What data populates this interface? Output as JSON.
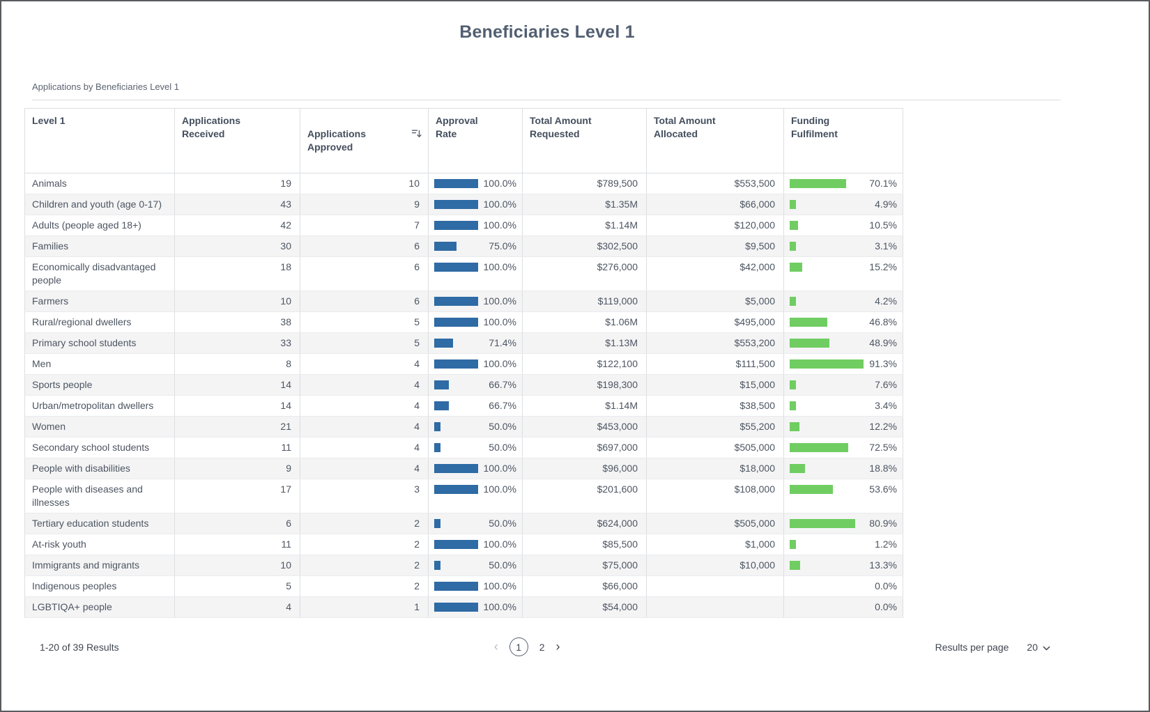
{
  "page": {
    "title": "Beneficiaries Level 1",
    "subtitle": "Applications by Beneficiaries Level 1"
  },
  "colors": {
    "approval_bar_blue": "#2f6ba4",
    "fulfilment_bar_green": "#70cd62"
  },
  "table": {
    "columns": [
      {
        "label": "Level 1"
      },
      {
        "label": "Applications\nReceived"
      },
      {
        "label": "Applications\nApproved",
        "sorted": true,
        "sort_icon": "sort-descending-icon"
      },
      {
        "label": "Approval\nRate"
      },
      {
        "label": "Total Amount\nRequested"
      },
      {
        "label": "Total Amount\nAllocated"
      },
      {
        "label": "Funding\nFulfilment"
      }
    ],
    "rows": [
      {
        "level1": "Animals",
        "received": "19",
        "approved": "10",
        "approval_rate": "100.0%",
        "approval_value": 100.0,
        "requested": "$789,500",
        "allocated": "$553,500",
        "fulfilment": "70.1%",
        "fulfilment_value": 70.1
      },
      {
        "level1": "Children and youth (age 0-17)",
        "received": "43",
        "approved": "9",
        "approval_rate": "100.0%",
        "approval_value": 100.0,
        "requested": "$1.35M",
        "allocated": "$66,000",
        "fulfilment": "4.9%",
        "fulfilment_value": 4.9
      },
      {
        "level1": "Adults (people aged 18+)",
        "received": "42",
        "approved": "7",
        "approval_rate": "100.0%",
        "approval_value": 100.0,
        "requested": "$1.14M",
        "allocated": "$120,000",
        "fulfilment": "10.5%",
        "fulfilment_value": 10.5
      },
      {
        "level1": "Families",
        "received": "30",
        "approved": "6",
        "approval_rate": "75.0%",
        "approval_value": 75.0,
        "requested": "$302,500",
        "allocated": "$9,500",
        "fulfilment": "3.1%",
        "fulfilment_value": 3.1
      },
      {
        "level1": "Economically disadvantaged people",
        "received": "18",
        "approved": "6",
        "approval_rate": "100.0%",
        "approval_value": 100.0,
        "requested": "$276,000",
        "allocated": "$42,000",
        "fulfilment": "15.2%",
        "fulfilment_value": 15.2
      },
      {
        "level1": "Farmers",
        "received": "10",
        "approved": "6",
        "approval_rate": "100.0%",
        "approval_value": 100.0,
        "requested": "$119,000",
        "allocated": "$5,000",
        "fulfilment": "4.2%",
        "fulfilment_value": 4.2
      },
      {
        "level1": "Rural/regional dwellers",
        "received": "38",
        "approved": "5",
        "approval_rate": "100.0%",
        "approval_value": 100.0,
        "requested": "$1.06M",
        "allocated": "$495,000",
        "fulfilment": "46.8%",
        "fulfilment_value": 46.8
      },
      {
        "level1": "Primary school students",
        "received": "33",
        "approved": "5",
        "approval_rate": "71.4%",
        "approval_value": 71.4,
        "requested": "$1.13M",
        "allocated": "$553,200",
        "fulfilment": "48.9%",
        "fulfilment_value": 48.9
      },
      {
        "level1": "Men",
        "received": "8",
        "approved": "4",
        "approval_rate": "100.0%",
        "approval_value": 100.0,
        "requested": "$122,100",
        "allocated": "$111,500",
        "fulfilment": "91.3%",
        "fulfilment_value": 91.3
      },
      {
        "level1": "Sports people",
        "received": "14",
        "approved": "4",
        "approval_rate": "66.7%",
        "approval_value": 66.7,
        "requested": "$198,300",
        "allocated": "$15,000",
        "fulfilment": "7.6%",
        "fulfilment_value": 7.6
      },
      {
        "level1": "Urban/metropolitan dwellers",
        "received": "14",
        "approved": "4",
        "approval_rate": "66.7%",
        "approval_value": 66.7,
        "requested": "$1.14M",
        "allocated": "$38,500",
        "fulfilment": "3.4%",
        "fulfilment_value": 3.4
      },
      {
        "level1": "Women",
        "received": "21",
        "approved": "4",
        "approval_rate": "50.0%",
        "approval_value": 50.0,
        "requested": "$453,000",
        "allocated": "$55,200",
        "fulfilment": "12.2%",
        "fulfilment_value": 12.2
      },
      {
        "level1": "Secondary school students",
        "received": "11",
        "approved": "4",
        "approval_rate": "50.0%",
        "approval_value": 50.0,
        "requested": "$697,000",
        "allocated": "$505,000",
        "fulfilment": "72.5%",
        "fulfilment_value": 72.5
      },
      {
        "level1": "People with disabilities",
        "received": "9",
        "approved": "4",
        "approval_rate": "100.0%",
        "approval_value": 100.0,
        "requested": "$96,000",
        "allocated": "$18,000",
        "fulfilment": "18.8%",
        "fulfilment_value": 18.8
      },
      {
        "level1": "People with diseases and illnesses",
        "received": "17",
        "approved": "3",
        "approval_rate": "100.0%",
        "approval_value": 100.0,
        "requested": "$201,600",
        "allocated": "$108,000",
        "fulfilment": "53.6%",
        "fulfilment_value": 53.6
      },
      {
        "level1": "Tertiary education students",
        "received": "6",
        "approved": "2",
        "approval_rate": "50.0%",
        "approval_value": 50.0,
        "requested": "$624,000",
        "allocated": "$505,000",
        "fulfilment": "80.9%",
        "fulfilment_value": 80.9
      },
      {
        "level1": "At-risk youth",
        "received": "11",
        "approved": "2",
        "approval_rate": "100.0%",
        "approval_value": 100.0,
        "requested": "$85,500",
        "allocated": "$1,000",
        "fulfilment": "1.2%",
        "fulfilment_value": 1.2
      },
      {
        "level1": "Immigrants and migrants",
        "received": "10",
        "approved": "2",
        "approval_rate": "50.0%",
        "approval_value": 50.0,
        "requested": "$75,000",
        "allocated": "$10,000",
        "fulfilment": "13.3%",
        "fulfilment_value": 13.3
      },
      {
        "level1": "Indigenous peoples",
        "received": "5",
        "approved": "2",
        "approval_rate": "100.0%",
        "approval_value": 100.0,
        "requested": "$66,000",
        "allocated": "",
        "fulfilment": "0.0%",
        "fulfilment_value": 0.0
      },
      {
        "level1": "LGBTIQA+ people",
        "received": "4",
        "approved": "1",
        "approval_rate": "100.0%",
        "approval_value": 100.0,
        "requested": "$54,000",
        "allocated": "",
        "fulfilment": "0.0%",
        "fulfilment_value": 0.0
      }
    ]
  },
  "footer": {
    "results_summary": "1-20 of 39 Results",
    "pagination": {
      "prev_label": "‹",
      "current_page": "1",
      "other_page": "2",
      "next_label": "›"
    },
    "results_per_page_label": "Results per page",
    "results_per_page_value": "20"
  }
}
